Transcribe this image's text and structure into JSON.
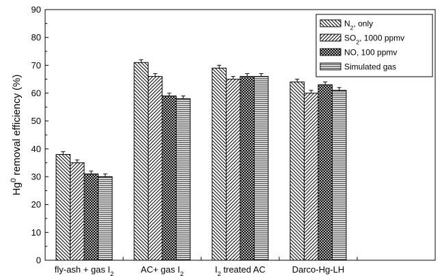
{
  "chart_data": {
    "type": "bar",
    "ylabel": "Hg0 removal efficiency (%)",
    "ylabel_parts": {
      "main": "Hg",
      "sup": "0",
      "rest": " removal efficiency (%)"
    },
    "ylim": [
      0,
      90
    ],
    "yticks": [
      0,
      10,
      20,
      30,
      40,
      50,
      60,
      70,
      80,
      90
    ],
    "grid": false,
    "legend_position": "top-right",
    "categories": [
      "fly-ash + gas I2",
      "AC+ gas I2",
      "I2 treated AC",
      "Darco-Hg-LH"
    ],
    "category_labels": [
      {
        "parts": [
          {
            "t": "fly-ash + gas I"
          },
          {
            "t": "2",
            "sub": true
          }
        ]
      },
      {
        "parts": [
          {
            "t": "AC+ gas I"
          },
          {
            "t": "2",
            "sub": true
          }
        ]
      },
      {
        "parts": [
          {
            "t": "I"
          },
          {
            "t": "2",
            "sub": true
          },
          {
            "t": " treated AC"
          }
        ]
      },
      {
        "parts": [
          {
            "t": "Darco-Hg-LH"
          }
        ]
      }
    ],
    "series": [
      {
        "name": "N2, only",
        "name_parts": [
          {
            "t": "N"
          },
          {
            "t": "2",
            "sub": true
          },
          {
            "t": ", only"
          }
        ],
        "pattern": "diagonal-down",
        "values": [
          38,
          71,
          69,
          64
        ],
        "errors": [
          1,
          1,
          1,
          1
        ]
      },
      {
        "name": "SO2, 1000 ppmv",
        "name_parts": [
          {
            "t": "SO"
          },
          {
            "t": "2",
            "sub": true
          },
          {
            "t": ", 1000 ppmv"
          }
        ],
        "pattern": "diagonal-up",
        "values": [
          35,
          66,
          65,
          60
        ],
        "errors": [
          1,
          1,
          1,
          1
        ]
      },
      {
        "name": "NO, 100 ppmv",
        "name_parts": [
          {
            "t": "NO, 100 ppmv"
          }
        ],
        "pattern": "crosshatch",
        "values": [
          31,
          59,
          66,
          63
        ],
        "errors": [
          1,
          1,
          1,
          1
        ]
      },
      {
        "name": "Simulated gas",
        "name_parts": [
          {
            "t": "Simulated gas"
          }
        ],
        "pattern": "horizontal",
        "values": [
          30,
          58,
          66,
          61
        ],
        "errors": [
          1,
          1,
          1,
          1
        ]
      }
    ]
  }
}
